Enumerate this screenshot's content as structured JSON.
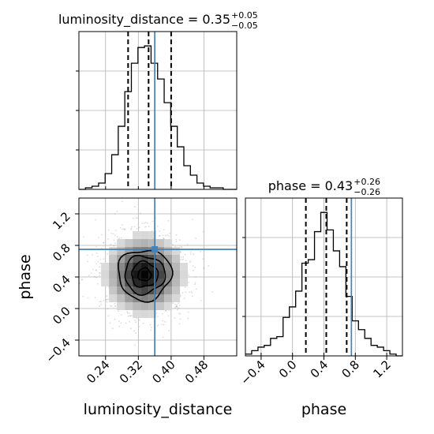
{
  "chart_data": {
    "type": "corner",
    "parameters": [
      "luminosity_distance",
      "phase"
    ],
    "truths": {
      "luminosity_distance": 0.36,
      "phase": 0.75
    },
    "colors": {
      "truth": "#4682b4",
      "hist": "#000000",
      "grid": "#b0b0b0",
      "scatter": "#9a9a9a"
    },
    "panels": {
      "luminosity_distance_hist": {
        "title_main": "luminosity_distance = 0.35",
        "title_sup": "+0.05",
        "title_sub": "−0.05",
        "xlim": [
          0.175,
          0.56
        ],
        "quantiles": [
          0.295,
          0.345,
          0.4
        ],
        "bin_edges": [
          0.175,
          0.191,
          0.207,
          0.223,
          0.239,
          0.255,
          0.271,
          0.287,
          0.303,
          0.319,
          0.335,
          0.351,
          0.367,
          0.383,
          0.399,
          0.415,
          0.431,
          0.447,
          0.463,
          0.479,
          0.495,
          0.511,
          0.527,
          0.543,
          0.56
        ],
        "counts": [
          0,
          1,
          2,
          4,
          10,
          22,
          40,
          62,
          80,
          90,
          91,
          80,
          70,
          55,
          40,
          27,
          15,
          9,
          4,
          2,
          1,
          1,
          0,
          0
        ]
      },
      "scatter_2d": {
        "xlim": [
          0.175,
          0.56
        ],
        "ylim": [
          -0.6,
          1.4
        ],
        "yticks": [
          -0.4,
          0.0,
          0.4,
          0.8,
          1.2
        ],
        "yticklabels": [
          "−0.4",
          "0.0",
          "0.4",
          "0.8",
          "1.2"
        ],
        "center": [
          0.335,
          0.43
        ],
        "contours": [
          {
            "rx": 0.016,
            "ry": 0.08
          },
          {
            "rx": 0.032,
            "ry": 0.16
          },
          {
            "rx": 0.049,
            "ry": 0.24
          },
          {
            "rx": 0.065,
            "ry": 0.32
          }
        ]
      },
      "phase_hist": {
        "title_main": "phase = 0.43",
        "title_sup": "+0.26",
        "title_sub": "−0.26",
        "xlim": [
          -0.6,
          1.4
        ],
        "quantiles": [
          0.17,
          0.43,
          0.69
        ],
        "bin_edges": [
          -0.6,
          -0.52,
          -0.44,
          -0.36,
          -0.28,
          -0.2,
          -0.12,
          -0.04,
          0.04,
          0.12,
          0.2,
          0.28,
          0.36,
          0.44,
          0.52,
          0.6,
          0.68,
          0.76,
          0.84,
          0.92,
          1.0,
          1.08,
          1.16,
          1.24,
          1.32,
          1.4
        ],
        "counts": [
          1,
          3,
          5,
          6,
          10,
          11,
          22,
          28,
          37,
          53,
          55,
          71,
          82,
          72,
          60,
          51,
          34,
          20,
          15,
          10,
          6,
          5,
          3,
          1,
          0
        ]
      }
    },
    "xticks": {
      "luminosity_distance": [
        0.24,
        0.32,
        0.4,
        0.48
      ],
      "luminosity_distance_labels": [
        "0.24",
        "0.32",
        "0.40",
        "0.48"
      ],
      "phase": [
        -0.4,
        0.0,
        0.4,
        0.8,
        1.2
      ],
      "phase_labels": [
        "−0.4",
        "0.0",
        "0.4",
        "0.8",
        "1.2"
      ]
    },
    "xlabel_left": "luminosity_distance",
    "xlabel_right": "phase",
    "ylabel": "phase",
    "grid": true
  }
}
